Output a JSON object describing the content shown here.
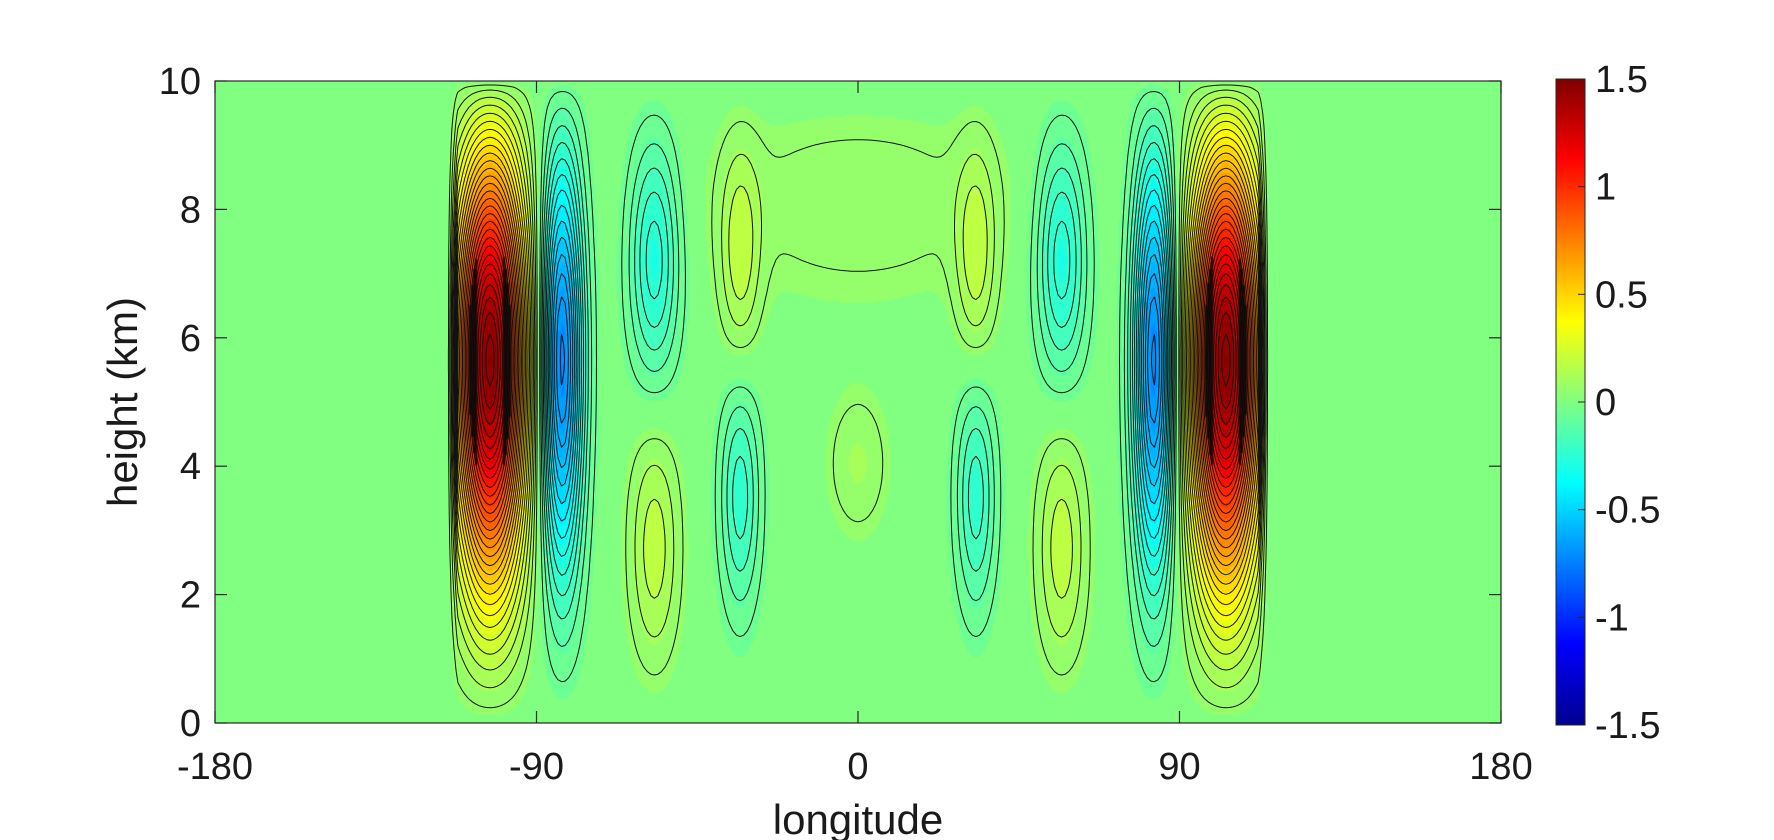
{
  "chart_data": {
    "type": "heatmap",
    "title": "",
    "xlabel": "longitude",
    "ylabel": "height (km)",
    "xlim": [
      -180,
      180
    ],
    "ylim": [
      0,
      10
    ],
    "x_ticks": [
      -180,
      -90,
      0,
      90,
      180
    ],
    "y_ticks": [
      0,
      2,
      4,
      6,
      8,
      10
    ],
    "x_tick_labels": [
      "-180",
      "-90",
      "0",
      "90",
      "180"
    ],
    "y_tick_labels": [
      "0",
      "2",
      "4",
      "6",
      "8",
      "10"
    ],
    "colorbar": {
      "colormap": "jet",
      "range": [
        -1.5,
        1.5
      ],
      "ticks": [
        -1.5,
        -1,
        -0.5,
        0,
        0.5,
        1,
        1.5
      ],
      "tick_labels": [
        "-1.5",
        "-1",
        "-0.5",
        "0",
        "0.5",
        "1",
        "1.5"
      ]
    },
    "contour_lines": true,
    "grid": false,
    "features": [
      {
        "kind": "max",
        "lon": -103,
        "height": 6,
        "value": 1.5
      },
      {
        "kind": "min",
        "lon": -83,
        "height": 6,
        "value": -0.75
      },
      {
        "kind": "min",
        "lon": -57,
        "height": 7.6,
        "value": -0.35
      },
      {
        "kind": "max",
        "lon": -57,
        "height": 2.4,
        "value": 0.2
      },
      {
        "kind": "min",
        "lon": -33,
        "height": 3.4,
        "value": -0.25
      },
      {
        "kind": "max",
        "lon": -33,
        "height": 7.5,
        "value": 0.2
      },
      {
        "kind": "max",
        "lon": 103,
        "height": 6,
        "value": 1.5
      },
      {
        "kind": "min",
        "lon": 83,
        "height": 6,
        "value": -0.75
      },
      {
        "kind": "min",
        "lon": 57,
        "height": 7.6,
        "value": -0.35
      },
      {
        "kind": "max",
        "lon": 57,
        "height": 2.4,
        "value": 0.2
      },
      {
        "kind": "min",
        "lon": 33,
        "height": 3.4,
        "value": -0.25
      },
      {
        "kind": "max",
        "lon": 33,
        "height": 7.5,
        "value": 0.2
      }
    ]
  }
}
